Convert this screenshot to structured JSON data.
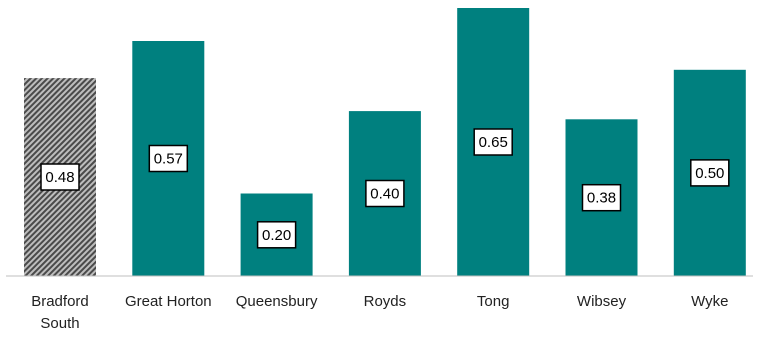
{
  "chart_data": {
    "type": "bar",
    "categories": [
      "Bradford South",
      "Great Horton",
      "Queensbury",
      "Royds",
      "Tong",
      "Wibsey",
      "Wyke"
    ],
    "category_lines": [
      [
        "Bradford",
        "South"
      ],
      [
        "Great Horton"
      ],
      [
        "Queensbury"
      ],
      [
        "Royds"
      ],
      [
        "Tong"
      ],
      [
        "Wibsey"
      ],
      [
        "Wyke"
      ]
    ],
    "values": [
      0.48,
      0.57,
      0.2,
      0.4,
      0.65,
      0.38,
      0.5
    ],
    "data_labels": [
      "0.48",
      "0.57",
      "0.20",
      "0.40",
      "0.65",
      "0.38",
      "0.50"
    ],
    "highlight_category": "Bradford South",
    "title": "",
    "xlabel": "",
    "ylabel": "",
    "ylim": [
      0,
      0.65
    ],
    "grid": false,
    "legend": "none",
    "colors": {
      "bar": "#00807F",
      "highlight_pattern_dark": "#4a4a4a",
      "highlight_pattern_light": "#bdbdbd",
      "axis": "#bfbfbf",
      "label_box_border": "#000000",
      "label_box_fill": "#ffffff"
    }
  }
}
